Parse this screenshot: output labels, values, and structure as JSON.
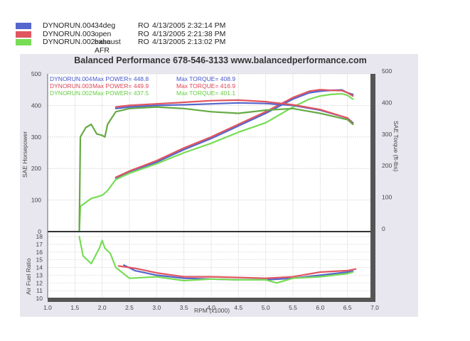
{
  "legend": [
    {
      "file": "DYNORUN.004",
      "desc": "34deg",
      "ro": "RO",
      "date": "4/13/2005 2:32:14 PM",
      "color": "#5566cc"
    },
    {
      "file": "DYNORUN.003",
      "desc": "open exhaust",
      "ro": "RO",
      "date": "4/13/2005 2:21:38 PM",
      "color": "#e05560"
    },
    {
      "file": "DYNORUN.002",
      "desc": "base AFR",
      "ro": "RO",
      "date": "4/13/2005 2:13:02 PM",
      "color": "#77dd55"
    }
  ],
  "title": "Balanced Performance 678-546-3133 www.balancedperformance.com",
  "stats": [
    {
      "run": "DYNORUN.004",
      "power": "Max POWER= 448.8",
      "torque": "Max TORQUE= 408.9",
      "color": "#4455cc"
    },
    {
      "run": "DYNORUN.003",
      "power": "Max POWER= 449.9",
      "torque": "Max TORQUE= 416.9",
      "color": "#dd4455"
    },
    {
      "run": "DYNORUN.002",
      "power": "Max POWER= 437.5",
      "torque": "Max TORQUE= 401.1",
      "color": "#66cc44"
    }
  ],
  "axes": {
    "left_label": "SAE Horsepower",
    "right_label": "SAE Torque (ft-lbs)",
    "afr_label": "Air Fuel Ratio",
    "x_label": "RPM (x1000)",
    "left_ticks": [
      "0",
      "100",
      "200",
      "300",
      "400",
      "500"
    ],
    "right_ticks": [
      "0",
      "100",
      "200",
      "300",
      "400",
      "500"
    ],
    "afr_ticks": [
      "10",
      "11",
      "12",
      "13",
      "14",
      "15",
      "16",
      "17",
      "18"
    ],
    "x_ticks": [
      "1.0",
      "1.5",
      "2.0",
      "2.5",
      "3.0",
      "3.5",
      "4.0",
      "4.5",
      "5.0",
      "5.5",
      "6.0",
      "6.5",
      "7.0"
    ]
  },
  "chart_data": {
    "type": "line",
    "title": "Balanced Performance 678-546-3133 www.balancedperformance.com",
    "xlabel": "RPM (x1000)",
    "ylabel": "SAE Horsepower",
    "y2label": "SAE Torque (ft-lbs)",
    "y3label": "Air Fuel Ratio",
    "xlim": [
      1.0,
      7.0
    ],
    "ylim": [
      0,
      500
    ],
    "y2lim": [
      0,
      500
    ],
    "afr_lim": [
      10,
      18
    ],
    "grid": true,
    "legend_position": "top-left",
    "series": [
      {
        "name": "DYNORUN.004 34deg - Power",
        "metric": "hp",
        "color": "#5566cc",
        "x": [
          2.25,
          2.5,
          3.0,
          3.5,
          4.0,
          4.5,
          5.0,
          5.5,
          5.8,
          6.0,
          6.2,
          6.4,
          6.5,
          6.6
        ],
        "y": [
          170,
          190,
          220,
          260,
          295,
          335,
          375,
          420,
          440,
          445,
          448,
          449,
          440,
          435
        ]
      },
      {
        "name": "DYNORUN.003 open exhaust - Power",
        "metric": "hp",
        "color": "#e05560",
        "x": [
          2.25,
          2.5,
          3.0,
          3.5,
          4.0,
          4.5,
          5.0,
          5.5,
          5.8,
          6.0,
          6.2,
          6.4,
          6.5,
          6.6
        ],
        "y": [
          172,
          192,
          225,
          265,
          300,
          340,
          380,
          425,
          445,
          450,
          448,
          447,
          440,
          430
        ]
      },
      {
        "name": "DYNORUN.002 base AFR - Power",
        "metric": "hp",
        "color": "#77dd55",
        "x": [
          1.58,
          1.6,
          1.8,
          2.0,
          2.1,
          2.25,
          2.5,
          3.0,
          3.5,
          4.0,
          4.5,
          5.0,
          5.5,
          5.8,
          6.0,
          6.2,
          6.4,
          6.5,
          6.6
        ],
        "y": [
          0,
          80,
          105,
          115,
          130,
          165,
          185,
          215,
          250,
          280,
          315,
          345,
          395,
          420,
          430,
          435,
          437,
          432,
          420
        ]
      },
      {
        "name": "DYNORUN.004 34deg - Torque",
        "metric": "torque",
        "color": "#5566cc",
        "x": [
          2.25,
          2.5,
          3.0,
          3.5,
          4.0,
          4.5,
          5.0,
          5.5,
          6.0,
          6.5,
          6.6
        ],
        "y": [
          390,
          395,
          400,
          402,
          405,
          408,
          406,
          400,
          385,
          360,
          345
        ]
      },
      {
        "name": "DYNORUN.003 open exhaust - Torque",
        "metric": "torque",
        "color": "#e05560",
        "x": [
          2.25,
          2.5,
          3.0,
          3.5,
          4.0,
          4.5,
          5.0,
          5.5,
          6.0,
          6.5,
          6.6
        ],
        "y": [
          395,
          400,
          405,
          410,
          415,
          417,
          412,
          402,
          387,
          360,
          342
        ]
      },
      {
        "name": "DYNORUN.002 base AFR - Torque",
        "metric": "torque",
        "color": "#66aa44",
        "x": [
          1.58,
          1.6,
          1.7,
          1.8,
          1.9,
          2.0,
          2.05,
          2.1,
          2.25,
          2.5,
          3.0,
          3.5,
          4.0,
          4.5,
          5.0,
          5.5,
          6.0,
          6.5,
          6.6
        ],
        "y": [
          0,
          300,
          330,
          340,
          310,
          305,
          300,
          340,
          380,
          390,
          395,
          390,
          380,
          375,
          385,
          390,
          375,
          355,
          340
        ]
      },
      {
        "name": "DYNORUN.004 34deg - AFR",
        "metric": "afr",
        "color": "#5566cc",
        "x": [
          2.4,
          2.6,
          3.0,
          3.5,
          4.0,
          4.5,
          5.0,
          5.5,
          6.0,
          6.5,
          6.6
        ],
        "y": [
          14.3,
          13.6,
          13.0,
          12.6,
          12.5,
          12.4,
          12.4,
          12.6,
          13.0,
          13.4,
          13.5
        ]
      },
      {
        "name": "DYNORUN.003 open exhaust - AFR",
        "metric": "afr",
        "color": "#e05560",
        "x": [
          2.3,
          2.6,
          3.0,
          3.5,
          4.0,
          4.5,
          5.0,
          5.5,
          6.0,
          6.5,
          6.65
        ],
        "y": [
          14.2,
          13.9,
          13.3,
          12.8,
          12.8,
          12.7,
          12.6,
          12.8,
          13.4,
          13.6,
          13.8
        ]
      },
      {
        "name": "DYNORUN.002 base AFR - AFR",
        "metric": "afr",
        "color": "#77dd55",
        "x": [
          1.58,
          1.65,
          1.8,
          1.95,
          2.0,
          2.05,
          2.15,
          2.25,
          2.5,
          3.0,
          3.5,
          4.0,
          4.5,
          5.0,
          5.2,
          5.5,
          6.0,
          6.5,
          6.6
        ],
        "y": [
          18,
          15.5,
          14.5,
          16.5,
          17.5,
          16.5,
          15.8,
          14,
          12.6,
          12.8,
          12.3,
          12.5,
          12.4,
          12.4,
          12.0,
          12.6,
          12.8,
          13.2,
          13.4
        ]
      }
    ]
  }
}
